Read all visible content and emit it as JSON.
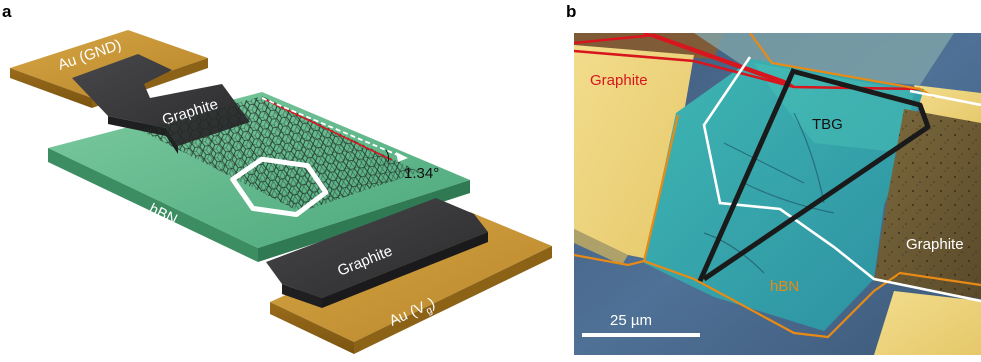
{
  "panels": {
    "a": {
      "letter": "a",
      "labels": {
        "au_gnd": "Au (GND)",
        "graphite_top": "Graphite",
        "graphite_bottom": "Graphite",
        "hbn": "hBN",
        "angle": "1.34°",
        "au_vg_main": "Au (V",
        "au_vg_sub": "g",
        "au_vg_close": ")"
      }
    },
    "b": {
      "letter": "b",
      "labels": {
        "graphite_top": "Graphite",
        "tbg": "TBG",
        "graphite_right": "Graphite",
        "hbn": "hBN",
        "scale": "25 µm"
      }
    }
  },
  "colors": {
    "gold": "#c4922e",
    "graphite_block": "#3a3a3c",
    "hbn_green": "#5fba8c",
    "outline_red": "#d7161e",
    "outline_orange": "#e88a16",
    "outline_white": "#ffffff",
    "outline_black": "#1a1a1a"
  }
}
